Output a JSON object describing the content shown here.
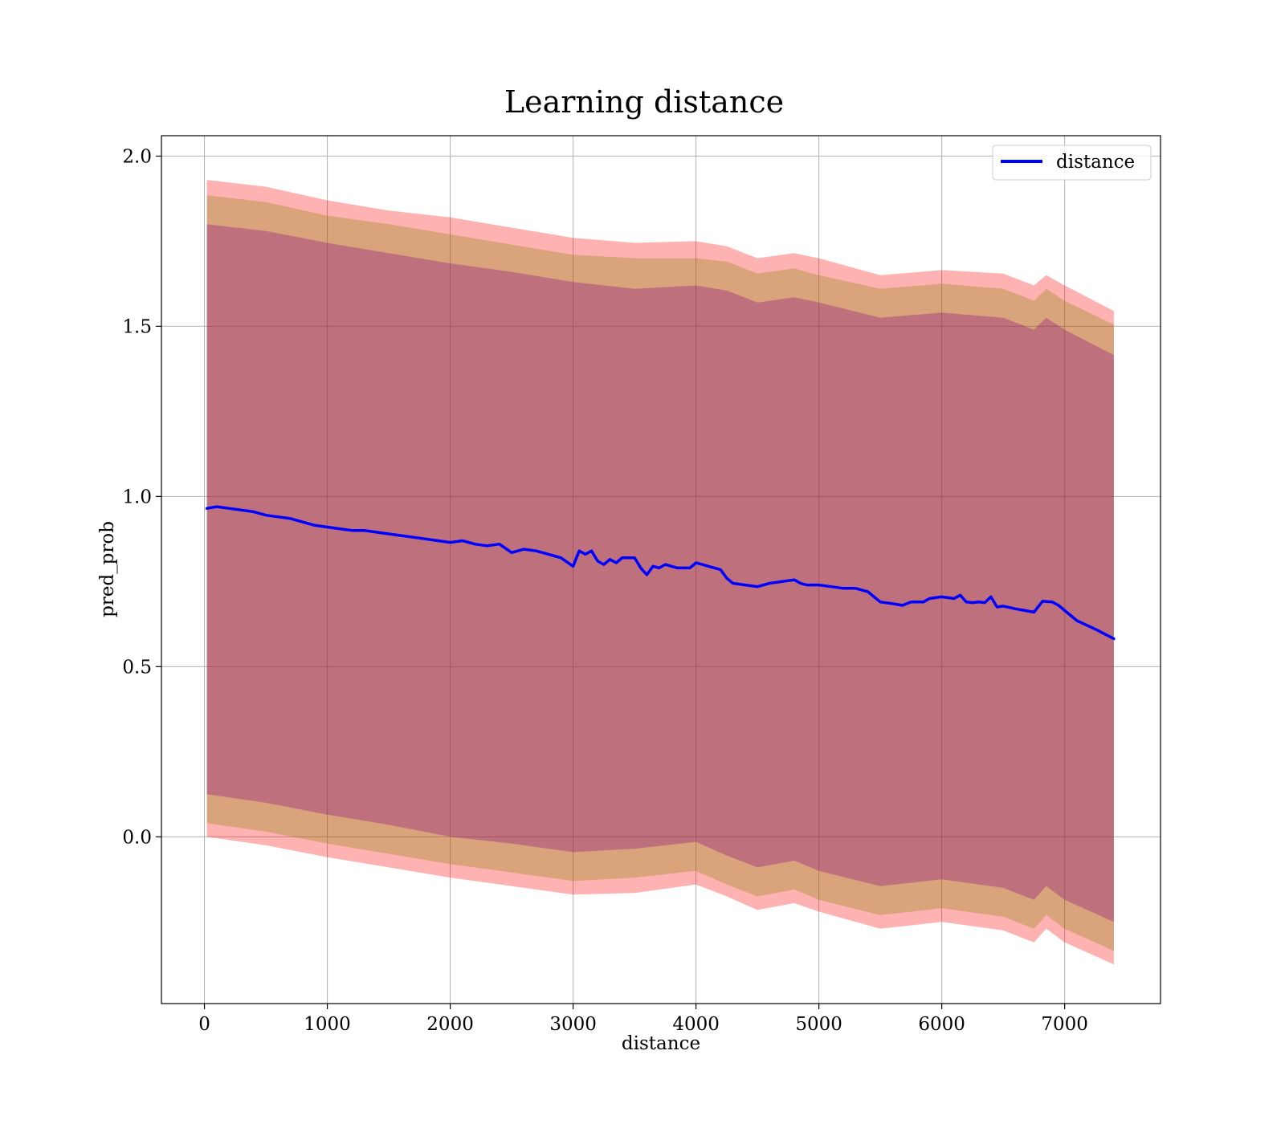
{
  "chart_data": {
    "type": "line",
    "title": "Learning distance",
    "xlabel": "distance",
    "ylabel": "pred_prob",
    "xlim": [
      -350,
      7780
    ],
    "ylim": [
      -0.49,
      2.06
    ],
    "xticks": [
      0,
      1000,
      2000,
      3000,
      4000,
      5000,
      6000,
      7000
    ],
    "xtick_labels": [
      "0",
      "1000",
      "2000",
      "3000",
      "4000",
      "5000",
      "6000",
      "7000"
    ],
    "yticks": [
      0.0,
      0.5,
      1.0,
      1.5,
      2.0
    ],
    "ytick_labels": [
      "0.0",
      "0.5",
      "1.0",
      "1.5",
      "2.0"
    ],
    "grid": true,
    "legend": {
      "position": "top-right",
      "entries": [
        "distance"
      ]
    },
    "colors": {
      "line": "#0000ff",
      "outer_band": "#ff0000",
      "middle_band": "#808000",
      "inner_band": "#800080",
      "grid": "#b0b0b0"
    },
    "series": [
      {
        "name": "distance",
        "x": [
          20,
          100,
          200,
          300,
          400,
          500,
          600,
          700,
          800,
          900,
          1000,
          1100,
          1200,
          1300,
          1400,
          1500,
          1600,
          1700,
          1800,
          1900,
          2000,
          2100,
          2200,
          2300,
          2400,
          2500,
          2600,
          2700,
          2800,
          2900,
          3000,
          3050,
          3100,
          3150,
          3200,
          3250,
          3300,
          3350,
          3400,
          3450,
          3500,
          3550,
          3600,
          3650,
          3700,
          3750,
          3800,
          3850,
          3900,
          3950,
          4000,
          4050,
          4100,
          4150,
          4200,
          4250,
          4300,
          4400,
          4500,
          4600,
          4700,
          4800,
          4850,
          4900,
          5000,
          5100,
          5200,
          5300,
          5400,
          5500,
          5600,
          5680,
          5750,
          5850,
          5900,
          6000,
          6100,
          6150,
          6200,
          6250,
          6300,
          6350,
          6400,
          6450,
          6500,
          6600,
          6750,
          6820,
          6900,
          6950,
          7100,
          7250,
          7400
        ],
        "y": [
          0.965,
          0.97,
          0.965,
          0.96,
          0.955,
          0.945,
          0.94,
          0.935,
          0.925,
          0.915,
          0.91,
          0.905,
          0.9,
          0.9,
          0.895,
          0.89,
          0.885,
          0.88,
          0.875,
          0.87,
          0.865,
          0.87,
          0.86,
          0.855,
          0.86,
          0.835,
          0.845,
          0.84,
          0.83,
          0.82,
          0.795,
          0.84,
          0.83,
          0.84,
          0.81,
          0.8,
          0.815,
          0.805,
          0.82,
          0.82,
          0.82,
          0.79,
          0.77,
          0.795,
          0.79,
          0.8,
          0.795,
          0.79,
          0.79,
          0.79,
          0.805,
          0.8,
          0.795,
          0.79,
          0.785,
          0.76,
          0.745,
          0.74,
          0.735,
          0.745,
          0.75,
          0.755,
          0.745,
          0.74,
          0.74,
          0.735,
          0.73,
          0.73,
          0.72,
          0.69,
          0.685,
          0.68,
          0.69,
          0.69,
          0.7,
          0.705,
          0.7,
          0.71,
          0.69,
          0.688,
          0.69,
          0.688,
          0.705,
          0.675,
          0.678,
          0.67,
          0.66,
          0.692,
          0.69,
          0.68,
          0.635,
          0.61,
          0.582
        ]
      }
    ],
    "bands": [
      {
        "name": "outer",
        "x": [
          20,
          500,
          1000,
          1500,
          2000,
          2500,
          3000,
          3500,
          4000,
          4250,
          4500,
          4800,
          5000,
          5500,
          6000,
          6500,
          6750,
          6850,
          7000,
          7400
        ],
        "upper": [
          1.93,
          1.91,
          1.87,
          1.84,
          1.82,
          1.79,
          1.76,
          1.745,
          1.75,
          1.735,
          1.7,
          1.715,
          1.7,
          1.65,
          1.665,
          1.655,
          1.62,
          1.65,
          1.62,
          1.545
        ],
        "lower": [
          0.0,
          -0.025,
          -0.06,
          -0.09,
          -0.12,
          -0.145,
          -0.17,
          -0.165,
          -0.14,
          -0.175,
          -0.215,
          -0.195,
          -0.22,
          -0.27,
          -0.25,
          -0.275,
          -0.31,
          -0.27,
          -0.31,
          -0.375
        ]
      },
      {
        "name": "middle",
        "x": [
          20,
          500,
          1000,
          1500,
          2000,
          2500,
          3000,
          3500,
          4000,
          4250,
          4500,
          4800,
          5000,
          5500,
          6000,
          6500,
          6750,
          6850,
          7000,
          7400
        ],
        "upper": [
          1.885,
          1.865,
          1.825,
          1.8,
          1.77,
          1.74,
          1.71,
          1.7,
          1.7,
          1.69,
          1.655,
          1.67,
          1.65,
          1.61,
          1.625,
          1.61,
          1.575,
          1.61,
          1.575,
          1.505
        ],
        "lower": [
          0.04,
          0.015,
          -0.02,
          -0.05,
          -0.08,
          -0.105,
          -0.13,
          -0.12,
          -0.1,
          -0.14,
          -0.175,
          -0.155,
          -0.185,
          -0.23,
          -0.21,
          -0.235,
          -0.27,
          -0.23,
          -0.27,
          -0.335
        ]
      },
      {
        "name": "inner",
        "x": [
          20,
          500,
          1000,
          1500,
          2000,
          2500,
          3000,
          3500,
          4000,
          4250,
          4500,
          4800,
          5000,
          5500,
          6000,
          6500,
          6750,
          6850,
          7000,
          7400
        ],
        "upper": [
          1.8,
          1.78,
          1.745,
          1.715,
          1.685,
          1.66,
          1.63,
          1.61,
          1.62,
          1.605,
          1.57,
          1.585,
          1.57,
          1.525,
          1.54,
          1.525,
          1.49,
          1.525,
          1.49,
          1.415
        ],
        "lower": [
          0.125,
          0.1,
          0.065,
          0.035,
          0.0,
          -0.02,
          -0.045,
          -0.035,
          -0.015,
          -0.055,
          -0.09,
          -0.07,
          -0.1,
          -0.145,
          -0.125,
          -0.15,
          -0.185,
          -0.145,
          -0.185,
          -0.25
        ]
      }
    ]
  }
}
